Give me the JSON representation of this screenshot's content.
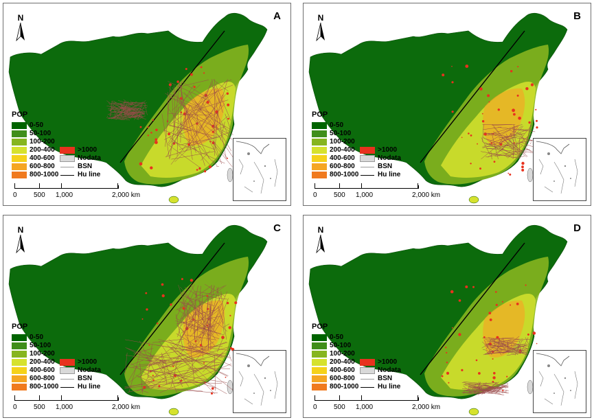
{
  "panels": [
    {
      "label": "A"
    },
    {
      "label": "B"
    },
    {
      "label": "C"
    },
    {
      "label": "D"
    }
  ],
  "north_arrow": {
    "text": "N",
    "icon": "north-arrow-icon"
  },
  "legend": {
    "title": "POP",
    "classes": [
      {
        "label": "0-50",
        "color": "#006400"
      },
      {
        "label": "50-100",
        "color": "#3f8e1a"
      },
      {
        "label": "100-200",
        "color": "#86b51f"
      },
      {
        "label": "200-400",
        "color": "#d6e22e"
      },
      {
        "label": "400-600",
        "color": "#f5d21a"
      },
      {
        "label": "600-800",
        "color": "#f5a623"
      },
      {
        "label": "800-1000",
        "color": "#f07a1e"
      },
      {
        "label": ">1000",
        "color": "#e8321e"
      }
    ],
    "nodata": {
      "label": "Nodata",
      "color": "#d9d9d9"
    },
    "bsn": {
      "label": "BSN",
      "color": "#9a9a9a"
    },
    "huline": {
      "label": "Hu line",
      "color": "#000000"
    }
  },
  "scalebar": {
    "ticks": [
      "0",
      "500",
      "1,000",
      "2,000 km"
    ]
  }
}
